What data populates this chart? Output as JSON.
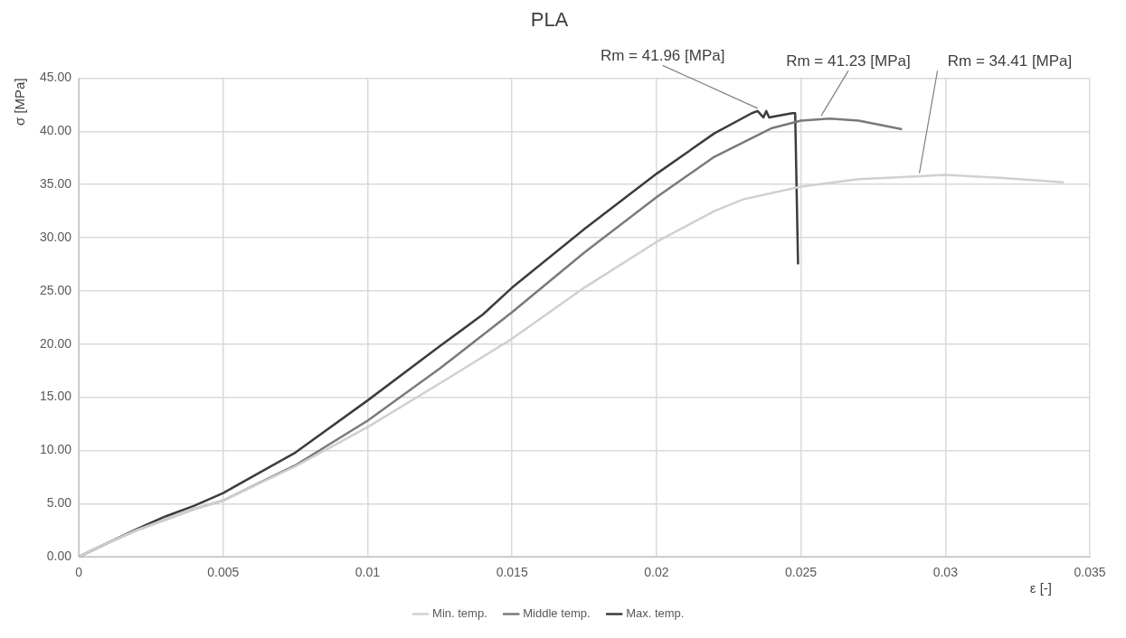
{
  "chart_data": {
    "type": "line",
    "title": "PLA",
    "xlabel": "ε [-]",
    "ylabel": "σ [MPa]",
    "xlim": [
      0,
      0.035
    ],
    "xticks": [
      0,
      0.005,
      0.01,
      0.015,
      0.02,
      0.025,
      0.03,
      0.035
    ],
    "ylim": [
      0,
      45
    ],
    "yticks": [
      {
        "value": 0,
        "label": "0.00"
      },
      {
        "value": 5,
        "label": "5.00"
      },
      {
        "value": 10,
        "label": "10.00"
      },
      {
        "value": 15,
        "label": "15.00"
      },
      {
        "value": 20,
        "label": "20.00"
      },
      {
        "value": 25,
        "label": "25.00"
      },
      {
        "value": 30,
        "label": "30.00"
      },
      {
        "value": 35,
        "label": "35.00"
      },
      {
        "value": 40,
        "label": "40.00"
      },
      {
        "value": 45,
        "label": "45.00"
      }
    ],
    "grid": true,
    "legend": "bottom",
    "marker": "none",
    "line_style": "solid",
    "series": [
      {
        "name": "Min. temp.",
        "color": "#d0d0d0",
        "x": [
          0,
          0.001,
          0.002,
          0.003,
          0.004,
          0.005,
          0.0075,
          0.01,
          0.0125,
          0.015,
          0.0175,
          0.02,
          0.022,
          0.023,
          0.025,
          0.027,
          0.03,
          0.032,
          0.0341
        ],
        "values": [
          0,
          1.3,
          2.5,
          3.5,
          4.5,
          5.3,
          8.5,
          12.2,
          16.3,
          20.5,
          25.3,
          29.6,
          32.5,
          33.6,
          34.8,
          35.5,
          35.9,
          35.6,
          35.2
        ]
      },
      {
        "name": "Middle temp.",
        "color": "#7a7a7a",
        "x": [
          0,
          0.001,
          0.002,
          0.003,
          0.004,
          0.005,
          0.0075,
          0.01,
          0.0125,
          0.015,
          0.0175,
          0.02,
          0.022,
          0.024,
          0.025,
          0.026,
          0.027,
          0.0285
        ],
        "values": [
          0,
          1.3,
          2.5,
          3.5,
          4.5,
          5.3,
          8.6,
          12.8,
          17.7,
          23.0,
          28.6,
          33.8,
          37.6,
          40.3,
          41.0,
          41.2,
          41.0,
          40.2
        ]
      },
      {
        "name": "Max. temp.",
        "color": "#3c3c3c",
        "x": [
          0,
          0.001,
          0.002,
          0.003,
          0.004,
          0.005,
          0.0075,
          0.01,
          0.0125,
          0.014,
          0.015,
          0.0175,
          0.02,
          0.022,
          0.0233,
          0.0235,
          0.0237,
          0.0238,
          0.0239,
          0.0241,
          0.0247,
          0.0248,
          0.0249
        ],
        "values": [
          0,
          1.3,
          2.6,
          3.8,
          4.8,
          6.0,
          9.8,
          14.7,
          19.8,
          22.8,
          25.3,
          30.8,
          36.0,
          39.8,
          41.7,
          41.9,
          41.3,
          41.9,
          41.3,
          41.4,
          41.7,
          41.7,
          27.5
        ]
      }
    ],
    "annotations": [
      {
        "text": "Rm = 41.96 [MPa]",
        "x": 0.0235,
        "y": 41.9
      },
      {
        "text": "Rm = 41.23 [MPa]",
        "x": 0.0257,
        "y": 41.2
      },
      {
        "text": "Rm = 34.41 [MPa]",
        "x": 0.0291,
        "y": 35.8
      }
    ]
  }
}
